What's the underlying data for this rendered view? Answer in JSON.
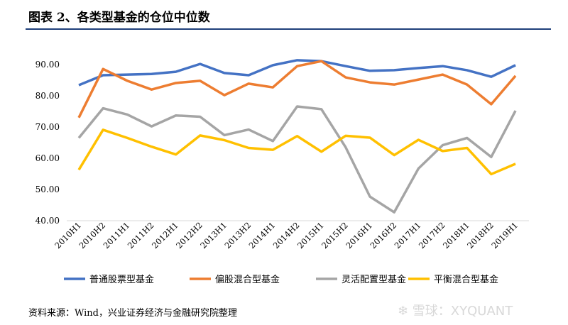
{
  "title": "图表 2、各类型基金的仓位中位数",
  "source": "资料来源：Wind，兴业证券经济与金融研究院整理",
  "watermark": "雪球：XYQUANT",
  "chart_data": {
    "type": "line",
    "categories": [
      "2010H1",
      "2010H2",
      "2011H1",
      "2011H2",
      "2012H1",
      "2012H2",
      "2013H1",
      "2013H2",
      "2014H1",
      "2014H2",
      "2015H1",
      "2015H2",
      "2016H1",
      "2016H2",
      "2017H1",
      "2017H2",
      "2018H1",
      "2018H2",
      "2019H1"
    ],
    "ylim": [
      40,
      90
    ],
    "yticks": [
      "40.00",
      "50.00",
      "60.00",
      "70.00",
      "80.00",
      "90.00"
    ],
    "grid": false,
    "legend": "bottom",
    "series": [
      {
        "name": "普通股票型基金",
        "color": "#4472c4",
        "values": [
          83.4,
          86.6,
          86.8,
          87.0,
          87.7,
          90.2,
          87.3,
          86.6,
          89.8,
          91.4,
          91.1,
          89.5,
          88.0,
          88.2,
          88.9,
          89.5,
          88.2,
          86.1,
          89.8
        ]
      },
      {
        "name": "偏股混合型基金",
        "color": "#ed7d31",
        "values": [
          73.0,
          88.6,
          84.8,
          82.0,
          84.1,
          84.8,
          80.2,
          83.9,
          82.7,
          89.5,
          91.1,
          85.9,
          84.3,
          83.6,
          85.2,
          86.8,
          83.6,
          77.3,
          86.4
        ]
      },
      {
        "name": "灵活配置型基金",
        "color": "#a5a5a5",
        "values": [
          66.5,
          76.0,
          74.0,
          70.2,
          73.7,
          73.3,
          67.4,
          69.2,
          65.5,
          76.6,
          75.7,
          63.5,
          47.7,
          42.7,
          56.7,
          64.2,
          66.5,
          60.4,
          75.2
        ]
      },
      {
        "name": "平衡混合型基金",
        "color": "#ffc000",
        "values": [
          56.3,
          69.1,
          66.5,
          63.7,
          61.2,
          67.3,
          65.8,
          63.3,
          62.7,
          67.1,
          62.1,
          67.2,
          66.6,
          61.0,
          65.9,
          62.3,
          63.3,
          54.9,
          58.2
        ]
      }
    ]
  }
}
